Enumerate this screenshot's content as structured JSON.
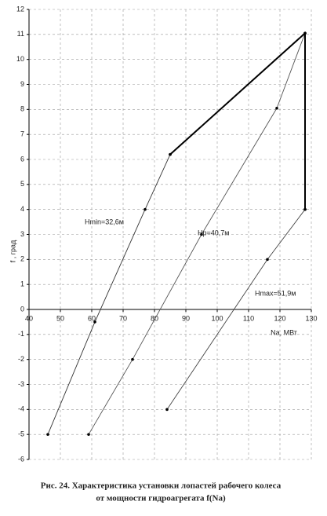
{
  "chart_data": {
    "type": "line",
    "x_label": "Nа, МВт",
    "y_label": "f , град",
    "caption": [
      "Рис. 24. Характеристика установки лопастей рабочего колеса",
      "от мощности гидроагрегата  f(Nа)"
    ],
    "xlim": [
      40,
      130
    ],
    "xticks": [
      40,
      50,
      60,
      70,
      80,
      90,
      100,
      110,
      120,
      130
    ],
    "ylim": [
      -6,
      12
    ],
    "yticks": [
      -6,
      -5,
      -4,
      -3,
      -2,
      -1,
      0,
      1,
      2,
      3,
      4,
      5,
      6,
      7,
      8,
      9,
      10,
      11,
      12
    ],
    "grid": true,
    "series": [
      {
        "name": "Hmin=32,6м",
        "color": "#333333",
        "x": [
          46,
          61,
          77,
          85
        ],
        "values": [
          -5,
          -0.5,
          4,
          6.2
        ]
      },
      {
        "name": "Hр=40,7м",
        "color": "#555555",
        "x": [
          59,
          73,
          95,
          119,
          128
        ],
        "values": [
          -5,
          -2,
          3,
          8.05,
          11.05
        ]
      },
      {
        "name": "Hmax=51,9м",
        "color": "#444444",
        "x": [
          84,
          116,
          128
        ],
        "values": [
          -4,
          2,
          4
        ]
      },
      {
        "color": "#000000",
        "x": [
          85,
          128,
          128
        ],
        "values": [
          6.2,
          11.05,
          4
        ],
        "thick": true
      }
    ]
  }
}
